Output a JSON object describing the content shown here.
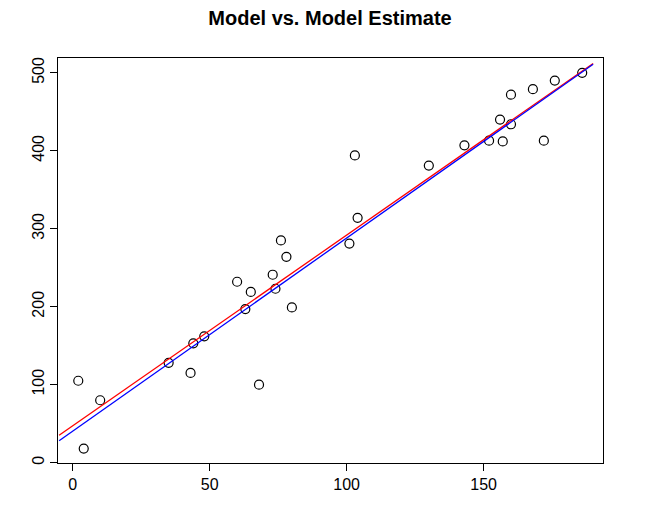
{
  "chart_data": {
    "type": "scatter",
    "title": "Model vs. Model Estimate",
    "xlim": [
      -5.4,
      193.6
    ],
    "ylim": [
      -0.5,
      519
    ],
    "xticks": [
      0,
      50,
      100,
      150
    ],
    "yticks": [
      0,
      100,
      200,
      300,
      400,
      500
    ],
    "grid": false,
    "series": [
      {
        "type": "scatter",
        "color": "black",
        "marker": "open circle",
        "x": [
          2,
          4,
          10,
          35,
          43,
          44,
          48,
          60,
          63,
          65,
          68,
          73,
          74,
          76,
          78,
          80,
          101,
          103,
          104,
          130,
          143,
          152,
          156,
          157,
          160,
          160,
          168,
          172,
          176,
          186
        ],
        "values": [
          105,
          18,
          80,
          128,
          115,
          153,
          162,
          232,
          197,
          219,
          100,
          241,
          223,
          285,
          264,
          199,
          281,
          394,
          314,
          381,
          407,
          413,
          440,
          412,
          472,
          434,
          479,
          413,
          490,
          500
        ]
      },
      {
        "type": "line",
        "color": "red",
        "line_style": "solid",
        "x": [
          -5,
          190
        ],
        "values": [
          35,
          512
        ]
      },
      {
        "type": "line",
        "color": "blue",
        "line_style": "solid",
        "x": [
          -5,
          190
        ],
        "values": [
          28,
          511
        ]
      }
    ]
  }
}
